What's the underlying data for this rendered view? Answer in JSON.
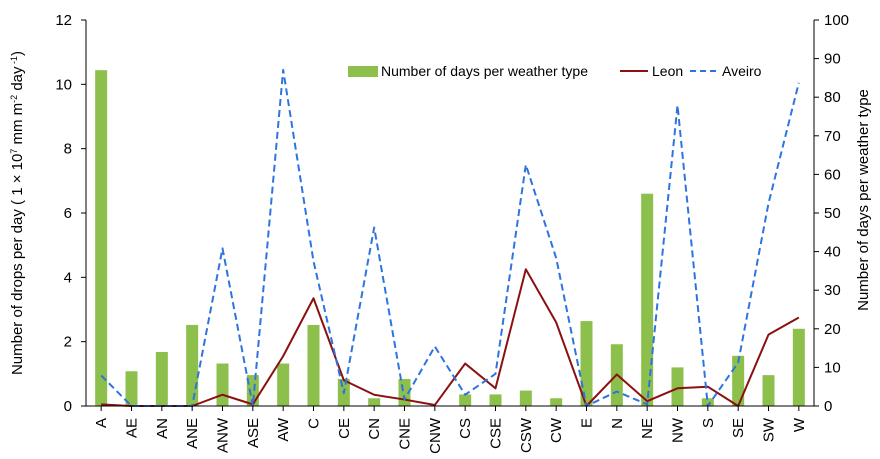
{
  "chart_data": {
    "type": "bar",
    "categories": [
      "A",
      "AE",
      "AN",
      "ANE",
      "ANW",
      "ASE",
      "AW",
      "C",
      "CE",
      "CN",
      "CNE",
      "CNW",
      "CS",
      "CSE",
      "CSW",
      "CW",
      "E",
      "N",
      "NE",
      "NW",
      "S",
      "SE",
      "SW",
      "W"
    ],
    "y_left": {
      "label_pre": "Number of drops per day  ( 1 × 10",
      "label_sup1": "7",
      "label_mid": " mm m",
      "label_sup2": "-2",
      "label_mid2": " day",
      "label_sup3": " -1",
      "label_post": ")",
      "ylim": [
        0,
        12
      ],
      "ticks": [
        0,
        2,
        4,
        6,
        8,
        10,
        12
      ]
    },
    "y_right": {
      "label": "Number of days per weather type",
      "ylim": [
        0,
        100
      ],
      "ticks": [
        0,
        10,
        20,
        30,
        40,
        50,
        60,
        70,
        80,
        90,
        100
      ]
    },
    "series": [
      {
        "name": "Number of days per weather type",
        "kind": "bar",
        "axis": "right",
        "color": "#8dbf4c",
        "values": [
          87,
          9,
          14,
          21,
          11,
          8,
          11,
          21,
          7,
          2,
          7,
          0,
          3,
          3,
          4,
          2,
          22,
          16,
          55,
          10,
          2,
          13,
          8,
          20
        ]
      },
      {
        "name": "Leon",
        "kind": "line",
        "axis": "left",
        "color": "#8b1010",
        "style": "solid",
        "values": [
          0.05,
          0.0,
          0.0,
          0.0,
          0.35,
          0.05,
          1.55,
          3.35,
          0.8,
          0.35,
          0.2,
          0.03,
          1.32,
          0.55,
          4.25,
          2.6,
          0.0,
          0.98,
          0.15,
          0.55,
          0.6,
          0.0,
          2.22,
          2.75
        ]
      },
      {
        "name": "Aveiro",
        "kind": "line",
        "axis": "left",
        "color": "#2e74e0",
        "style": "dashed",
        "values": [
          0.95,
          0.0,
          0.0,
          0.0,
          4.9,
          0.0,
          10.45,
          4.5,
          0.4,
          5.55,
          0.2,
          1.85,
          0.35,
          1.0,
          7.5,
          4.6,
          0.0,
          0.45,
          0.05,
          9.35,
          0.0,
          1.35,
          6.3,
          10.05
        ]
      }
    ],
    "legend_position": "top-right",
    "grid": false
  }
}
